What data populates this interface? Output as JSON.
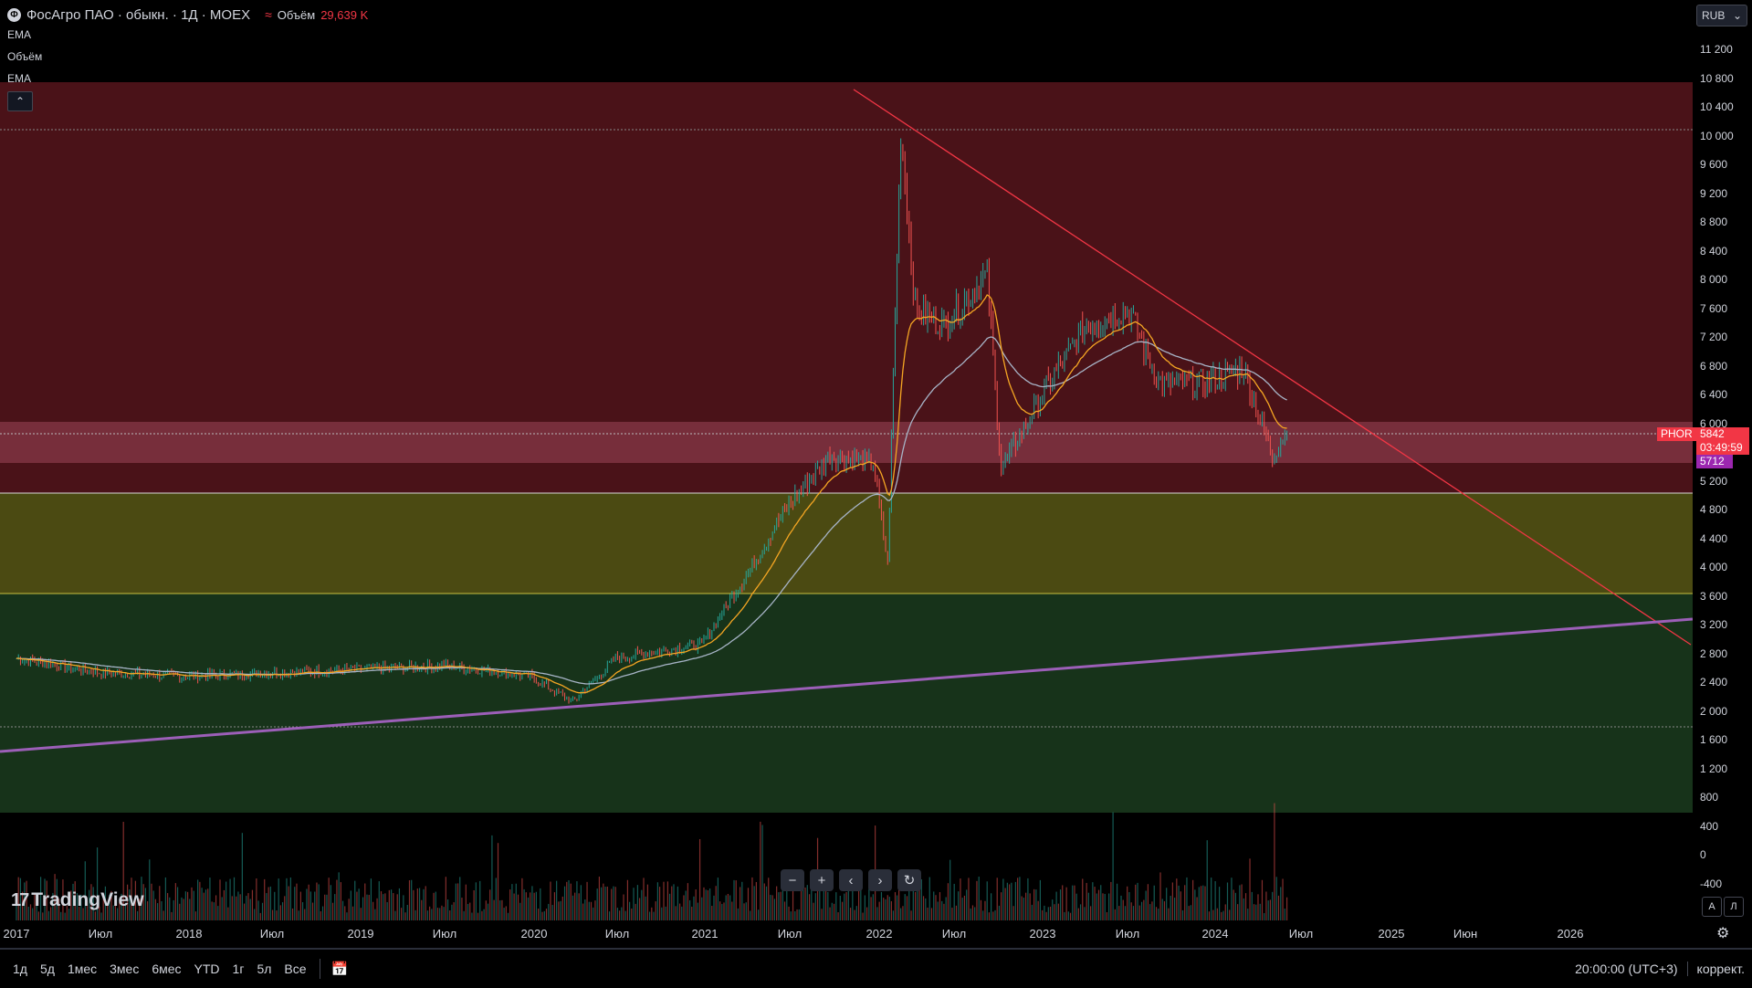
{
  "symbol": {
    "logo_text": "Ф",
    "title": "ФосАгро ПАО · обыкн. · 1Д · MOEX",
    "volume_icon": "≈",
    "volume_label": "Объём",
    "volume_value": "29,639 K",
    "indicators": [
      "EMA",
      "Объём",
      "EMA"
    ],
    "collapse_icon": "chevron-up-icon"
  },
  "currency": {
    "label": "RUB",
    "icon": "chevron-down-icon"
  },
  "price_axis": {
    "ticks": [
      "11 200",
      "10 800",
      "10 400",
      "10 000",
      "9 600",
      "9 200",
      "8 800",
      "8 400",
      "8 000",
      "7 600",
      "7 200",
      "6 800",
      "6 400",
      "6 000",
      "5 600",
      "5 200",
      "4 800",
      "4 400",
      "4 000",
      "3 600",
      "3 200",
      "2 800",
      "2 400",
      "2 000",
      "1 600",
      "1 200",
      "800",
      "400",
      "0",
      "-400"
    ],
    "ticker_tag": "PHOR",
    "last_price": "5842",
    "countdown": "03:49:59",
    "ema_value": "5712"
  },
  "time_axis": [
    "2017",
    "Июл",
    "2018",
    "Июл",
    "2019",
    "Июл",
    "2020",
    "Июл",
    "2021",
    "Июл",
    "2022",
    "Июл",
    "2023",
    "Июл",
    "2024",
    "Июл",
    "2025",
    "Июн",
    "2026"
  ],
  "nav_buttons": [
    "−",
    "+",
    "‹",
    "›",
    "↻"
  ],
  "branding": {
    "name": "TradingView"
  },
  "scale_buttons": [
    "A",
    "Л"
  ],
  "bottom_bar": {
    "timeframes": [
      "1д",
      "5д",
      "1мес",
      "3мес",
      "6мес",
      "YTD",
      "1г",
      "5л",
      "Все"
    ],
    "clock": "20:00:00 (UTC+3)",
    "adjust_label": "коррект."
  },
  "colors": {
    "zone_red": "#4a1218",
    "zone_yellow": "#4b4a12",
    "zone_green": "#17331a",
    "highlight_band": "#8a3a4a",
    "trendline_down": "#f23645",
    "trendline_up": "#9c5fb8",
    "candle_up": "#26a69a",
    "candle_down": "#ef5350",
    "ema_fast": "#f5a623",
    "ema_slow": "#a7b4c7"
  },
  "chart_data": {
    "type": "line",
    "ylim": [
      -400,
      11400
    ],
    "series": [
      {
        "x": [
          "2017-01",
          "2017-07",
          "2018-01",
          "2018-07",
          "2019-01",
          "2019-07",
          "2020-01",
          "2020-04",
          "2020-07",
          "2021-01",
          "2021-04",
          "2021-07",
          "2021-10",
          "2022-01",
          "2022-02",
          "2022-03",
          "2022-04",
          "2022-06",
          "2022-09",
          "2022-10",
          "2023-01",
          "2023-04",
          "2023-07",
          "2023-09",
          "2023-12",
          "2024-03",
          "2024-05",
          "2024-06"
        ],
        "values": [
          2700,
          2500,
          2450,
          2500,
          2550,
          2600,
          2450,
          2100,
          2700,
          2900,
          3800,
          4800,
          5500,
          5400,
          4000,
          10000,
          7500,
          7300,
          8000,
          5300,
          6400,
          7300,
          7500,
          6500,
          6500,
          6700,
          5500,
          5842
        ]
      }
    ],
    "zones": [
      {
        "from": 5000,
        "to": 10800,
        "label": "red"
      },
      {
        "from": 3600,
        "to": 5000,
        "label": "yellow"
      },
      {
        "from": 800,
        "to": 3600,
        "label": "green"
      },
      {
        "from": 5600,
        "to": 6000,
        "label": "band"
      }
    ]
  }
}
